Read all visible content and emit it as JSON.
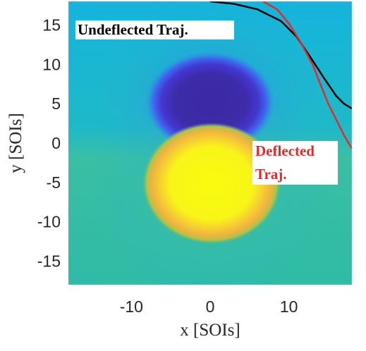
{
  "chart_data": {
    "type": "heatmap",
    "title": "",
    "xlabel": "x [SOIs]",
    "ylabel": "y [SOIs]",
    "xlim": [
      -18,
      18
    ],
    "ylim": [
      -18,
      18
    ],
    "x_ticks": [
      -10,
      0,
      10
    ],
    "y_ticks": [
      -15,
      -10,
      -5,
      0,
      5,
      10,
      15
    ],
    "grid": false,
    "legend": "none",
    "colormap": [
      "#3e26a8",
      "#4a5cf2",
      "#2f8fea",
      "#1fb3d5",
      "#34c09a",
      "#9fc44a",
      "#f3b43b",
      "#fde725",
      "#f9fb0e"
    ],
    "field": {
      "background_color": "#27b6c9",
      "low_region_color": "#3b2aa3",
      "high_region_color": "#f9fb0e"
    },
    "series": [
      {
        "name": "Undeflected Traj.",
        "color": "#000000",
        "x": [
          0,
          3,
          6,
          9,
          11,
          13,
          14.5,
          16,
          17,
          18
        ],
        "y": [
          18,
          17.7,
          17,
          15.5,
          13.5,
          10.5,
          8.2,
          6.0,
          5.0,
          4.4
        ]
      },
      {
        "name": "Deflected Traj.",
        "color": "#e22b2b",
        "x": [
          6.7,
          8.5,
          10,
          11.5,
          13,
          14,
          15,
          16,
          17,
          18
        ],
        "y": [
          18,
          17,
          15.2,
          12.8,
          10,
          7.5,
          5.0,
          3.0,
          1.0,
          -0.7
        ]
      }
    ],
    "annotations": {
      "undeflected": "Undeflected Traj.",
      "deflected_line1": "Deflected",
      "deflected_line2": "Traj."
    }
  }
}
